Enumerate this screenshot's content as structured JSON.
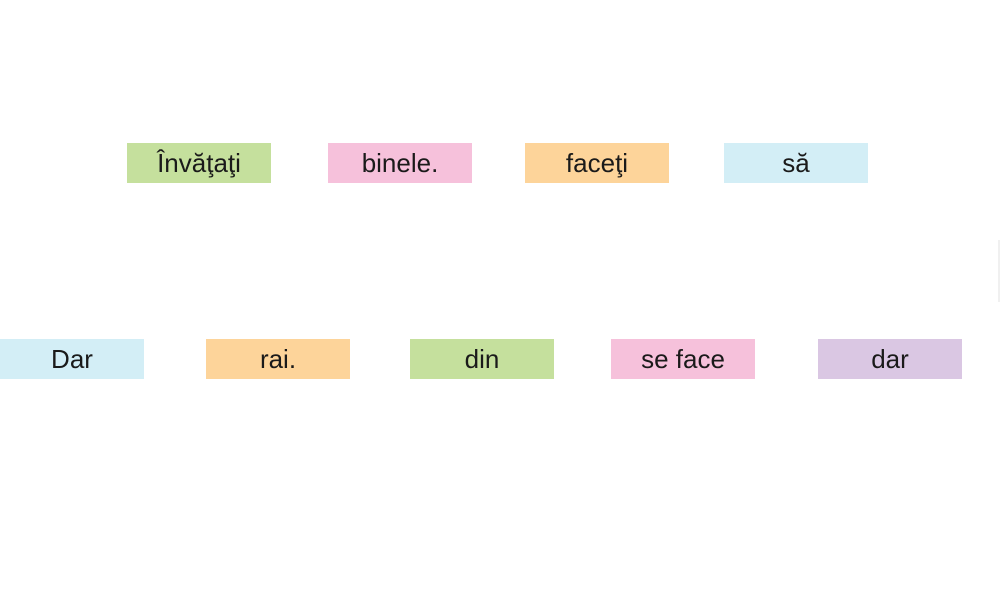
{
  "colors": {
    "green": "#c5e09d",
    "pink": "#f6c1db",
    "orange": "#fdd49a",
    "blue": "#d3eef6",
    "purple": "#dac7e3"
  },
  "rows": [
    {
      "words": [
        {
          "text": "Învăţaţi",
          "color": "green"
        },
        {
          "text": "binele.",
          "color": "pink"
        },
        {
          "text": "faceţi",
          "color": "orange"
        },
        {
          "text": "să",
          "color": "blue"
        }
      ]
    },
    {
      "words": [
        {
          "text": "Dar",
          "color": "blue"
        },
        {
          "text": "rai.",
          "color": "orange"
        },
        {
          "text": "din",
          "color": "green"
        },
        {
          "text": "se face",
          "color": "pink"
        },
        {
          "text": "dar",
          "color": "purple"
        }
      ]
    }
  ]
}
